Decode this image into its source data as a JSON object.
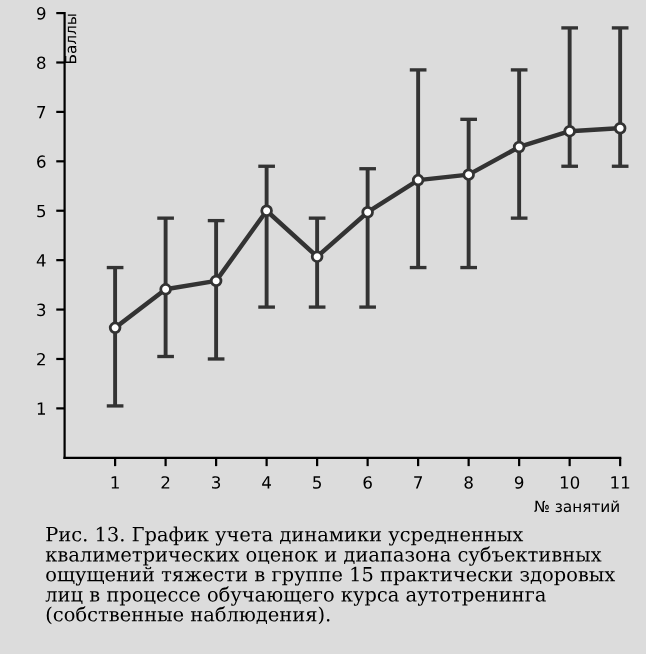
{
  "chart_data": {
    "type": "line",
    "x": [
      1,
      2,
      3,
      4,
      5,
      6,
      7,
      8,
      9,
      10,
      11
    ],
    "series": [
      {
        "color": "#333333",
        "values": [
          2.63,
          3.41,
          3.58,
          5.0,
          4.07,
          4.97,
          5.62,
          5.73,
          6.29,
          6.61,
          6.67
        ],
        "errors": [
          [
            1.05,
            3.85
          ],
          [
            2.05,
            4.85
          ],
          [
            2.0,
            4.8
          ],
          [
            3.05,
            5.9
          ],
          [
            3.05,
            4.85
          ],
          [
            3.05,
            5.85
          ],
          [
            3.85,
            7.85
          ],
          [
            3.85,
            6.85
          ],
          [
            4.85,
            7.85
          ],
          [
            5.9,
            8.7
          ],
          [
            5.9,
            8.7
          ]
        ]
      }
    ],
    "xlim": [
      0,
      11
    ],
    "ylim": [
      0,
      9
    ],
    "xticks": [
      1,
      2,
      3,
      4,
      5,
      6,
      7,
      8,
      9,
      10,
      11
    ],
    "yticks": [
      1,
      2,
      3,
      4,
      5,
      6,
      7,
      8,
      9
    ],
    "xlabel": "№ занятий",
    "ylabel": "Баллы",
    "marker": "circle",
    "line_style": "solid",
    "grid": false,
    "legend": false,
    "annotations": [
      "Рис. 13. График учета динамики усредненных квалиметрических оценок и диапазона субъективных ощущений тяжести в группе 15 практически здоровых лиц в процессе обучающего курса аутотренинга (собственные наблюдения)."
    ]
  }
}
